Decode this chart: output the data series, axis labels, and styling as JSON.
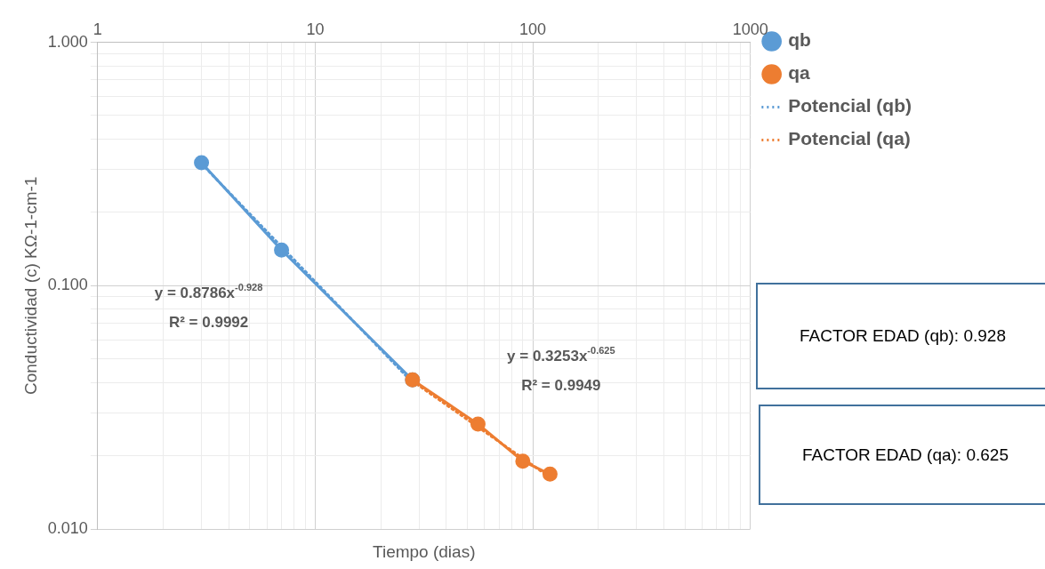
{
  "chart_data": {
    "type": "line",
    "xlabel": "Tiempo (dias)",
    "ylabel": "Conductividad (c) KΩ-1-cm-1",
    "log": "xy",
    "grid": true,
    "legend": "right",
    "marker": "circle",
    "xlim": [
      1,
      1000
    ],
    "xticks": [
      1,
      {
        "value": 2,
        "label": null
      },
      {
        "value": 3,
        "label": null
      },
      {
        "value": 4,
        "label": null
      },
      {
        "value": 5,
        "label": null
      },
      {
        "value": 6,
        "label": null
      },
      {
        "value": 7,
        "label": null
      },
      {
        "value": 8,
        "label": null
      },
      {
        "value": 9,
        "label": null
      },
      10,
      {
        "value": 20,
        "label": null
      },
      {
        "value": 30,
        "label": null
      },
      {
        "value": 40,
        "label": null
      },
      {
        "value": 50,
        "label": null
      },
      {
        "value": 60,
        "label": null
      },
      {
        "value": 70,
        "label": null
      },
      {
        "value": 80,
        "label": null
      },
      {
        "value": 90,
        "label": null
      },
      100,
      {
        "value": 200,
        "label": null
      },
      {
        "value": 300,
        "label": null
      },
      {
        "value": 400,
        "label": null
      },
      {
        "value": 500,
        "label": null
      },
      {
        "value": 600,
        "label": null
      },
      {
        "value": 700,
        "label": null
      },
      {
        "value": 800,
        "label": null
      },
      {
        "value": 900,
        "label": null
      },
      1000
    ],
    "ylim": [
      0.01,
      1
    ],
    "yticks": [
      {
        "value": 0.01,
        "label": "0.010"
      },
      {
        "value": 0.02,
        "label": null
      },
      {
        "value": 0.03,
        "label": null
      },
      {
        "value": 0.04,
        "label": null
      },
      {
        "value": 0.05,
        "label": null
      },
      {
        "value": 0.06,
        "label": null
      },
      {
        "value": 0.07,
        "label": null
      },
      {
        "value": 0.08,
        "label": null
      },
      {
        "value": 0.09,
        "label": null
      },
      {
        "value": 0.1,
        "label": "0.100"
      },
      {
        "value": 0.2,
        "label": null
      },
      {
        "value": 0.3,
        "label": null
      },
      {
        "value": 0.4,
        "label": null
      },
      {
        "value": 0.5,
        "label": null
      },
      {
        "value": 0.6,
        "label": null
      },
      {
        "value": 0.7,
        "label": null
      },
      {
        "value": 0.8,
        "label": null
      },
      {
        "value": 0.9,
        "label": null
      },
      {
        "value": 1,
        "label": "1.000"
      }
    ],
    "series": [
      {
        "name": "qb",
        "color": "#5b9bd5",
        "x": [
          3,
          7,
          28
        ],
        "values": [
          0.32,
          0.14,
          0.041
        ]
      },
      {
        "name": "qa",
        "color": "#ed7d31",
        "x": [
          28,
          56,
          90,
          120
        ],
        "values": [
          0.041,
          0.027,
          0.019,
          0.0168
        ]
      },
      {
        "name": "Potencial (qb)",
        "color": "#5b9bd5",
        "marker": "none",
        "line_style": "dotted",
        "x": [
          3,
          28
        ],
        "values": [
          0.317,
          0.04
        ]
      },
      {
        "name": "Potencial (qa)",
        "color": "#ed7d31",
        "marker": "none",
        "line_style": "dotted",
        "x": [
          28,
          120
        ],
        "values": [
          0.0405,
          0.0163
        ]
      }
    ],
    "annotations": [
      "y = 0.8786x$^{-0.928}$",
      "R² = 0.9992",
      "y = 0.3253x$^{-0.625}$",
      "R² = 0.9949",
      "FACTOR EDAD (qb): 0.928",
      "FACTOR EDAD (qa): 0.625"
    ]
  }
}
